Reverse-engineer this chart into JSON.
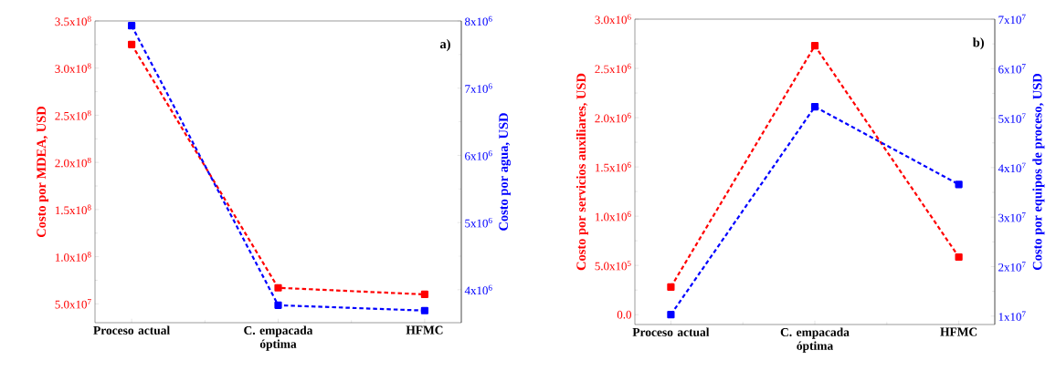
{
  "chart_data": [
    {
      "type": "line",
      "categories": [
        "Proceso actual",
        "C. empacada óptima",
        "HFMC"
      ],
      "ylabel": "Costo por MDEA, USD",
      "y2label": "Costo por agua, USD",
      "annotations": [
        "a)"
      ],
      "marker": "square",
      "line_style": "dashed",
      "ylim": [
        30000000,
        350000000
      ],
      "yticks": [
        {
          "value": 50000000,
          "label": "5.0x10$^{7}$"
        },
        {
          "value": 100000000,
          "label": "1.0x10$^{8}$"
        },
        {
          "value": 150000000,
          "label": "1.5x10$^{8}$"
        },
        {
          "value": 200000000,
          "label": "2.0x10$^{8}$"
        },
        {
          "value": 250000000,
          "label": "2.5x10$^{8}$"
        },
        {
          "value": 300000000,
          "label": "3.0x10$^{8}$"
        },
        {
          "value": 350000000,
          "label": "3.5x10$^{8}$"
        }
      ],
      "y2lim": [
        3510000,
        8000000
      ],
      "y2ticks": [
        {
          "value": 4000000,
          "label": "4x10$^{6}$"
        },
        {
          "value": 5000000,
          "label": "5x10$^{6}$"
        },
        {
          "value": 6000000,
          "label": "6x10$^{6}$"
        },
        {
          "value": 7000000,
          "label": "7x10$^{6}$"
        },
        {
          "value": 8000000,
          "label": "8x10$^{6}$"
        }
      ],
      "series": [
        {
          "color": "#ff0000",
          "values": [
            325000000,
            67000000,
            60000000
          ]
        },
        {
          "color": "#0000ff",
          "axis": "y2",
          "values": [
            7930000,
            3770000,
            3690000
          ]
        }
      ]
    },
    {
      "type": "line",
      "categories": [
        "Proceso actual",
        "C. empacada óptima",
        "HFMC"
      ],
      "ylabel": "Costo por servicios auxiliares, USD",
      "y2label": "Costo por equipos de proceso, USD",
      "annotations": [
        "b)"
      ],
      "marker": "square",
      "line_style": "dashed",
      "ylim": [
        -100000,
        3000000
      ],
      "yticks": [
        {
          "value": 0,
          "label": "0.0"
        },
        {
          "value": 500000,
          "label": "5.0x10$^{5}$"
        },
        {
          "value": 1000000,
          "label": "1.0x10$^{6}$"
        },
        {
          "value": 1500000,
          "label": "1.5x10$^{6}$"
        },
        {
          "value": 2000000,
          "label": "2.0x10$^{6}$"
        },
        {
          "value": 2500000,
          "label": "2.5x10$^{6}$"
        },
        {
          "value": 3000000,
          "label": "3.0x10$^{6}$"
        }
      ],
      "y2lim": [
        8300000,
        70000000
      ],
      "y2ticks": [
        {
          "value": 10000000,
          "label": "1x10$^{7}$"
        },
        {
          "value": 20000000,
          "label": "2x10$^{7}$"
        },
        {
          "value": 30000000,
          "label": "3x10$^{7}$"
        },
        {
          "value": 40000000,
          "label": "4x10$^{7}$"
        },
        {
          "value": 50000000,
          "label": "5x10$^{7}$"
        },
        {
          "value": 60000000,
          "label": "6x10$^{7}$"
        },
        {
          "value": 70000000,
          "label": "7x10$^{7}$"
        }
      ],
      "series": [
        {
          "color": "#ff0000",
          "values": [
            280000,
            2730000,
            585000
          ]
        },
        {
          "color": "#0000ff",
          "axis": "y2",
          "values": [
            10300000,
            52300000,
            36600000
          ]
        }
      ]
    }
  ]
}
